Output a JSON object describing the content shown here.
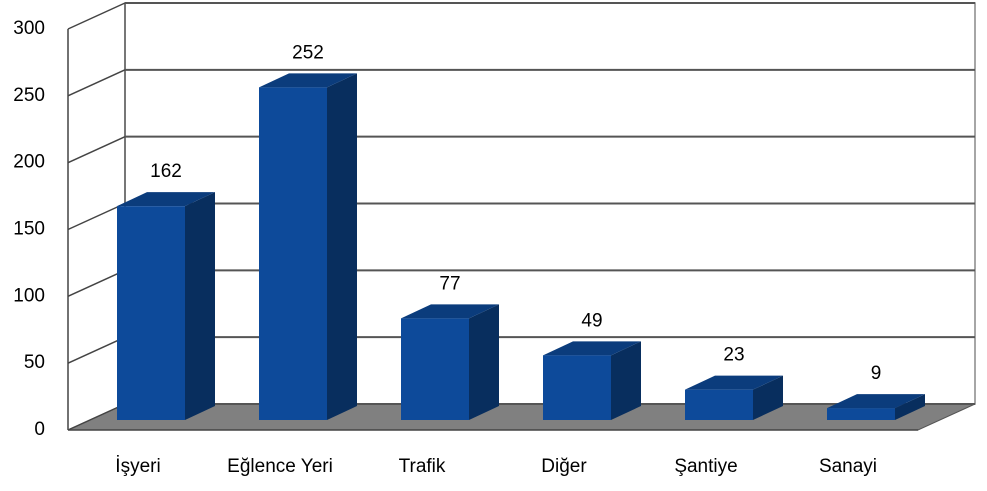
{
  "chart_data": {
    "type": "bar3d",
    "categories": [
      "İşyeri",
      "Eğlence Yeri",
      "Trafik",
      "Diğer",
      "Şantiye",
      "Sanayi"
    ],
    "values": [
      162,
      252,
      77,
      49,
      23,
      9
    ],
    "color": "#0d4a9a",
    "ylim": [
      0,
      300
    ],
    "yticks": [
      0,
      50,
      100,
      150,
      200,
      250,
      300
    ],
    "grid": true
  }
}
